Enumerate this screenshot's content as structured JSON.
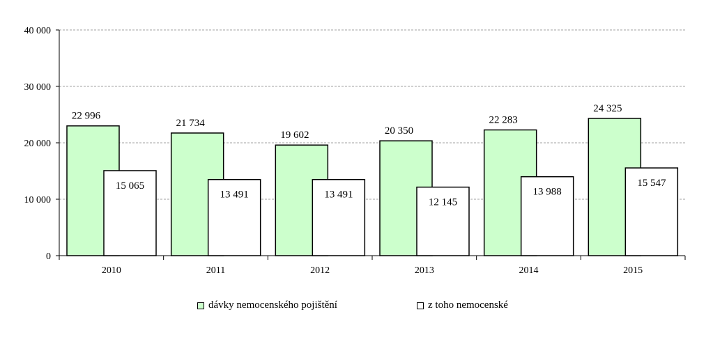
{
  "chart_data": {
    "type": "bar",
    "categories": [
      "2010",
      "2011",
      "2012",
      "2013",
      "2014",
      "2015"
    ],
    "series": [
      {
        "name": "dávky nemocenského pojištění",
        "values": [
          22996,
          21734,
          19602,
          20350,
          22283,
          24325
        ],
        "labels": [
          "22 996",
          "21 734",
          "19 602",
          "20 350",
          "22 283",
          "24 325"
        ],
        "color": "#ccffcc"
      },
      {
        "name": "z toho nemocenské",
        "values": [
          15065,
          13491,
          13491,
          12145,
          13988,
          15547
        ],
        "labels": [
          "15 065",
          "13 491",
          "13 491",
          "12 145",
          "13 988",
          "15 547"
        ],
        "color": "#ffffff"
      }
    ],
    "ylim": [
      0,
      40000
    ],
    "yticks": [
      0,
      10000,
      20000,
      30000,
      40000
    ],
    "ytick_labels": [
      "0",
      "10 000",
      "20 000",
      "30 000",
      "40 000"
    ],
    "grid": true,
    "legend_position": "bottom"
  }
}
